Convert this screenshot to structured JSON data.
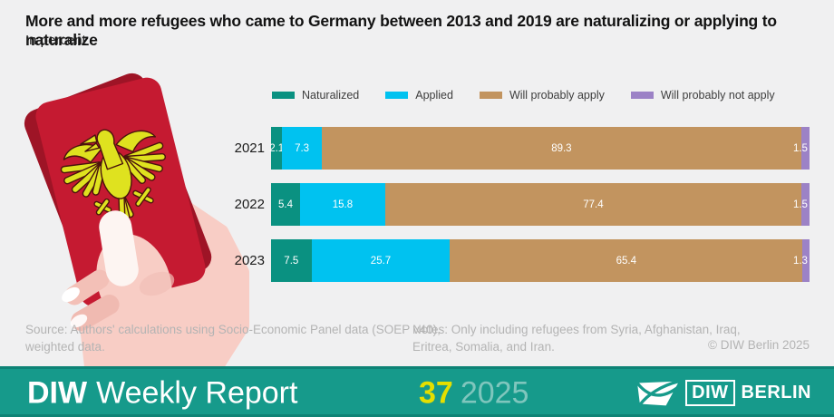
{
  "header": {
    "title": "More and more refugees who came to Germany between 2013 and 2019 are naturalizing or applying to naturalize",
    "subtitle": "In percent"
  },
  "chart_data": {
    "type": "bar",
    "orientation": "horizontal",
    "stacked": true,
    "categories": [
      "2021",
      "2022",
      "2023"
    ],
    "series": [
      {
        "name": "Naturalized",
        "color": "#0a9181",
        "values": [
          2.1,
          5.4,
          7.5
        ]
      },
      {
        "name": "Applied",
        "color": "#00c2f0",
        "values": [
          7.3,
          15.8,
          25.7
        ]
      },
      {
        "name": "Will probably apply",
        "color": "#c2945f",
        "values": [
          89.3,
          77.4,
          65.4
        ]
      },
      {
        "name": "Will probably not apply",
        "color": "#9c82c6",
        "values": [
          1.5,
          1.5,
          1.3
        ]
      }
    ],
    "xlim": [
      0,
      100
    ],
    "unit": "percent",
    "value_labels": true,
    "legend_position": "top",
    "grid": false
  },
  "footnotes": {
    "source_line1": "Source: Authors' calculations using Socio-Economic Panel data (SOEP v40),",
    "source_line2": "weighted data.",
    "notes_line1": "Notes: Only including refugees from Syria, Afghanistan, Iraq,",
    "notes_line2": "Eritrea, Somalia, and Iran.",
    "copyright": "© DIW Berlin 2025"
  },
  "footer": {
    "brand": "DIW",
    "publication": "Weekly Report",
    "issue_number": "37",
    "issue_year": "2025",
    "logo_diw": "DIW",
    "logo_berlin": "BERLIN",
    "bg_color": "#169a8b",
    "issue_number_color": "#e5df00",
    "issue_year_color": "#7fc6bd"
  },
  "illustration": {
    "name": "hand-holding-german-passport",
    "passport_color": "#c51a31",
    "passport_back_color": "#9e1426",
    "eagle_color": "#dfe21f",
    "hand_color": "#f8cdc5",
    "thumb_color": "#fdf5f2"
  }
}
